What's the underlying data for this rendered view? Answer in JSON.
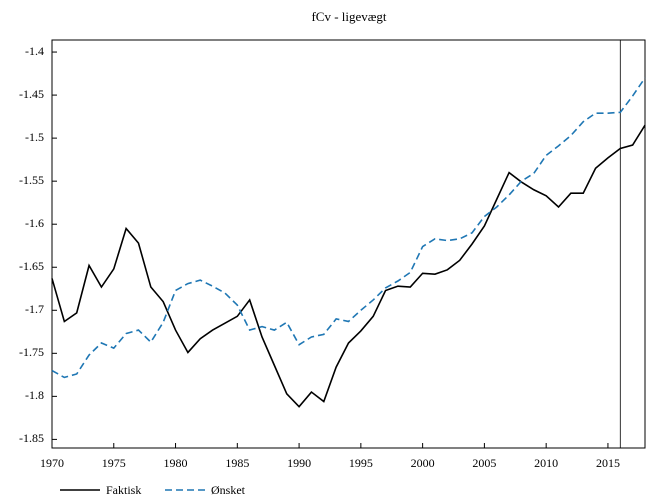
{
  "chart_data": {
    "type": "line",
    "title": "fCv - ligevægt",
    "x": [
      1970,
      1971,
      1972,
      1973,
      1974,
      1975,
      1976,
      1977,
      1978,
      1979,
      1980,
      1981,
      1982,
      1983,
      1984,
      1985,
      1986,
      1987,
      1988,
      1989,
      1990,
      1991,
      1992,
      1993,
      1994,
      1995,
      1996,
      1997,
      1998,
      1999,
      2000,
      2001,
      2002,
      2003,
      2004,
      2005,
      2006,
      2007,
      2008,
      2009,
      2010,
      2011,
      2012,
      2013,
      2014,
      2015,
      2016,
      2017,
      2018
    ],
    "series": [
      {
        "name": "Faktisk",
        "color": "#000000",
        "dash": false,
        "values": [
          -1.663,
          -1.713,
          -1.703,
          -1.648,
          -1.673,
          -1.652,
          -1.605,
          -1.622,
          -1.673,
          -1.69,
          -1.723,
          -1.749,
          -1.733,
          -1.723,
          -1.715,
          -1.707,
          -1.688,
          -1.731,
          -1.764,
          -1.797,
          -1.812,
          -1.795,
          -1.806,
          -1.766,
          -1.738,
          -1.724,
          -1.707,
          -1.677,
          -1.672,
          -1.673,
          -1.657,
          -1.658,
          -1.653,
          -1.642,
          -1.623,
          -1.602,
          -1.571,
          -1.54,
          -1.551,
          -1.56,
          -1.567,
          -1.58,
          -1.564,
          -1.564,
          -1.535,
          -1.523,
          -1.512,
          -1.508,
          -1.485
        ]
      },
      {
        "name": "Ønsket",
        "color": "#1f77b4",
        "dash": true,
        "values": [
          -1.77,
          -1.778,
          -1.774,
          -1.752,
          -1.738,
          -1.744,
          -1.727,
          -1.723,
          -1.737,
          -1.714,
          -1.677,
          -1.669,
          -1.665,
          -1.672,
          -1.68,
          -1.694,
          -1.723,
          -1.719,
          -1.723,
          -1.714,
          -1.74,
          -1.731,
          -1.728,
          -1.71,
          -1.713,
          -1.7,
          -1.688,
          -1.674,
          -1.666,
          -1.656,
          -1.626,
          -1.617,
          -1.619,
          -1.617,
          -1.61,
          -1.591,
          -1.58,
          -1.566,
          -1.55,
          -1.541,
          -1.52,
          -1.509,
          -1.497,
          -1.481,
          -1.471,
          -1.471,
          -1.47,
          -1.451,
          -1.43
        ]
      }
    ],
    "xlim": [
      1970,
      2018
    ],
    "xticks": [
      1970,
      1975,
      1980,
      1985,
      1990,
      1995,
      2000,
      2005,
      2010,
      2015
    ],
    "ylim": [
      -1.86,
      -1.386
    ],
    "yticks": [
      -1.4,
      -1.45,
      -1.5,
      -1.55,
      -1.6,
      -1.65,
      -1.7,
      -1.75,
      -1.8,
      -1.85
    ],
    "vline": 2016,
    "legend": "bottom"
  }
}
